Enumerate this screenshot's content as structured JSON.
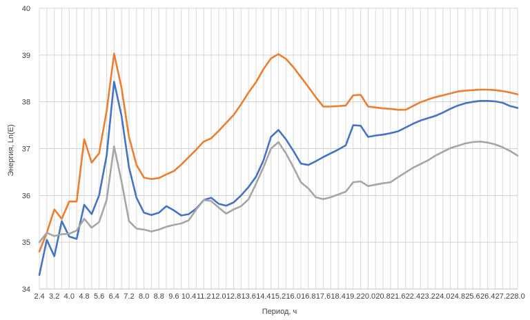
{
  "chart_data": {
    "type": "line",
    "xlabel": "Период, ч",
    "ylabel": "Энергия, Ln(E)",
    "ylim": [
      34,
      40
    ],
    "y_ticks": [
      "34",
      "35",
      "36",
      "37",
      "38",
      "39",
      "40"
    ],
    "x_tick_labels": [
      "2.4",
      "3.2",
      "4.0",
      "4.8",
      "5.6",
      "6.4",
      "7.2",
      "8.0",
      "8.8",
      "9.6",
      "10.4",
      "11.2",
      "12.0",
      "12.8",
      "13.6",
      "14.4",
      "15.2",
      "16.0",
      "16.8",
      "17.6",
      "18.4",
      "19.2",
      "20.0",
      "20.8",
      "21.6",
      "22.4",
      "23.2",
      "24.0",
      "24.8",
      "25.6",
      "26.4",
      "27.2",
      "28.0"
    ],
    "grid": "vertical and horizontal",
    "legend": "none",
    "colors": {
      "orange": "#ED7D31",
      "blue": "#4472C4",
      "gray": "#A5A5A5"
    },
    "x": [
      2.4,
      2.8,
      3.2,
      3.6,
      4.0,
      4.4,
      4.8,
      5.2,
      5.6,
      6.0,
      6.4,
      6.8,
      7.2,
      7.6,
      8.0,
      8.4,
      8.8,
      9.2,
      9.6,
      10.0,
      10.4,
      10.8,
      11.2,
      11.6,
      12.0,
      12.4,
      12.8,
      13.2,
      13.6,
      14.0,
      14.4,
      14.8,
      15.2,
      15.6,
      16.0,
      16.4,
      16.8,
      17.2,
      17.6,
      18.0,
      18.4,
      18.8,
      19.2,
      19.6,
      20.0,
      20.4,
      20.8,
      21.2,
      21.6,
      22.0,
      22.4,
      22.8,
      23.2,
      23.6,
      24.0,
      24.4,
      24.8,
      25.2,
      25.6,
      26.0,
      26.4,
      26.8,
      27.2,
      27.6,
      28.0
    ],
    "series": [
      {
        "color": "#ED7D31",
        "values": [
          34.8,
          35.2,
          35.7,
          35.5,
          35.87,
          35.87,
          37.2,
          36.7,
          36.9,
          37.8,
          39.03,
          38.3,
          37.25,
          36.65,
          36.38,
          36.35,
          36.37,
          36.45,
          36.52,
          36.66,
          36.82,
          36.98,
          37.15,
          37.22,
          37.38,
          37.55,
          37.72,
          37.95,
          38.2,
          38.42,
          38.7,
          38.93,
          39.02,
          38.92,
          38.74,
          38.53,
          38.32,
          38.1,
          37.9,
          37.9,
          37.91,
          37.92,
          38.14,
          38.15,
          37.9,
          37.88,
          37.86,
          37.85,
          37.83,
          37.83,
          37.91,
          37.99,
          38.05,
          38.1,
          38.14,
          38.18,
          38.22,
          38.24,
          38.25,
          38.26,
          38.26,
          38.25,
          38.23,
          38.2,
          38.16
        ]
      },
      {
        "color": "#4472C4",
        "values": [
          34.3,
          35.05,
          34.7,
          35.45,
          35.12,
          35.07,
          35.8,
          35.6,
          36.0,
          36.85,
          38.43,
          37.7,
          36.6,
          35.95,
          35.63,
          35.58,
          35.63,
          35.77,
          35.68,
          35.57,
          35.6,
          35.72,
          35.9,
          35.95,
          35.82,
          35.78,
          35.85,
          36.0,
          36.18,
          36.4,
          36.75,
          37.25,
          37.4,
          37.2,
          36.95,
          36.68,
          36.65,
          36.73,
          36.82,
          36.9,
          36.98,
          37.07,
          37.5,
          37.49,
          37.25,
          37.28,
          37.3,
          37.33,
          37.37,
          37.45,
          37.53,
          37.6,
          37.65,
          37.7,
          37.77,
          37.85,
          37.92,
          37.97,
          38.0,
          38.02,
          38.02,
          38.01,
          37.98,
          37.91,
          37.87
        ]
      },
      {
        "color": "#A5A5A5",
        "values": [
          35.0,
          35.2,
          35.13,
          35.17,
          35.18,
          35.25,
          35.5,
          35.31,
          35.43,
          35.9,
          37.05,
          36.3,
          35.45,
          35.29,
          35.27,
          35.23,
          35.27,
          35.33,
          35.37,
          35.4,
          35.47,
          35.7,
          35.9,
          35.88,
          35.74,
          35.61,
          35.7,
          35.77,
          35.92,
          36.25,
          36.6,
          37.0,
          37.14,
          36.9,
          36.6,
          36.28,
          36.15,
          35.96,
          35.92,
          35.96,
          36.02,
          36.08,
          36.28,
          36.3,
          36.2,
          36.23,
          36.26,
          36.28,
          36.39,
          36.49,
          36.59,
          36.67,
          36.75,
          36.85,
          36.93,
          37.01,
          37.06,
          37.11,
          37.14,
          37.15,
          37.13,
          37.09,
          37.03,
          36.95,
          36.85
        ]
      }
    ]
  }
}
